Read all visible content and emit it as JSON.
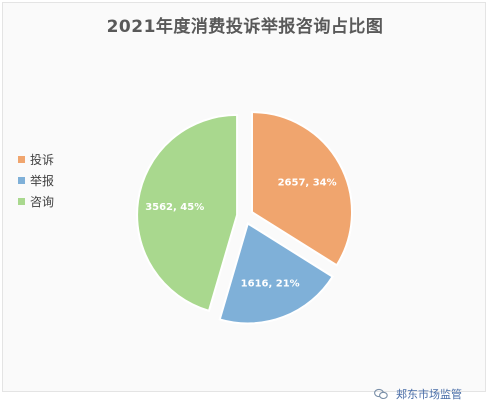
{
  "chart_data": {
    "type": "pie",
    "title": "2021年度消费投诉举报咨询占比图",
    "slices": [
      {
        "name": "投诉",
        "value": 2657,
        "percent": 34,
        "label": "2657, 34%",
        "color": "#f0a56e"
      },
      {
        "name": "举报",
        "value": 1616,
        "percent": 21,
        "label": "1616, 21%",
        "color": "#7fb0d8"
      },
      {
        "name": "咨询",
        "value": 3562,
        "percent": 45,
        "label": "3562, 45%",
        "color": "#a9d88e"
      }
    ],
    "legend": "left",
    "exploded": true
  },
  "watermark": {
    "text": "郏东市场监管",
    "icon": "wechat-official-account-icon"
  }
}
